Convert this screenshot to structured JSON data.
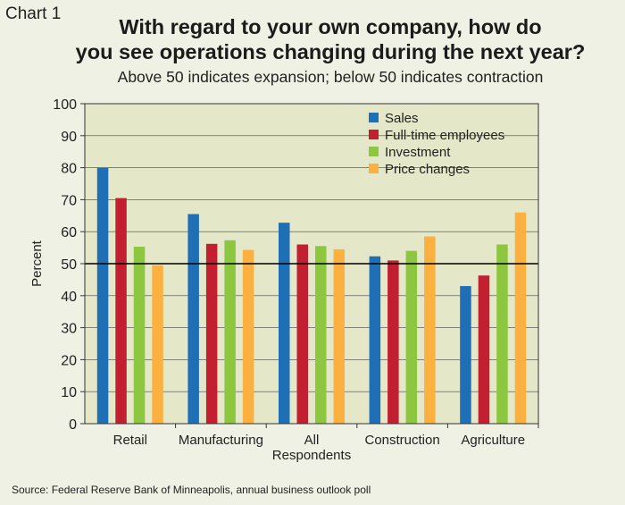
{
  "chart_label": "Chart 1",
  "title_line1": "With regard to your own company, how do",
  "title_line2": "you see operations changing during the next year?",
  "subtitle": "Above 50 indicates expansion; below 50 indicates contraction",
  "footer": "Source: Federal Reserve Bank of Minneapolis, annual business outlook poll",
  "colors": {
    "plot_bg": "#e4e8c8",
    "page_bg": "#eef1e3",
    "grid": "#444444",
    "ref_line": "#000000"
  },
  "chart_data": {
    "type": "bar",
    "ylabel": "Percent",
    "xlabel": "",
    "ylim": [
      0,
      100
    ],
    "yticks": [
      0,
      10,
      20,
      30,
      40,
      50,
      60,
      70,
      80,
      90,
      100
    ],
    "grid": true,
    "reference_line": 50,
    "legend_position": "top-right",
    "categories": [
      "Retail",
      "Manufacturing",
      "All Respondents",
      "Construction",
      "Agriculture"
    ],
    "category_label_lines": [
      [
        "Retail"
      ],
      [
        "Manufacturing"
      ],
      [
        "All",
        "Respondents"
      ],
      [
        "Construction"
      ],
      [
        "Agriculture"
      ]
    ],
    "series": [
      {
        "name": "Sales",
        "color": "#1f6fb7",
        "values": [
          80,
          65.5,
          62.8,
          52.3,
          43
        ]
      },
      {
        "name": "Full-time employees",
        "color": "#c21f30",
        "values": [
          70.5,
          56.2,
          56,
          51,
          46.3
        ]
      },
      {
        "name": "Investment",
        "color": "#8dc63f",
        "values": [
          55.3,
          57.3,
          55.5,
          54,
          56
        ]
      },
      {
        "name": "Price changes",
        "color": "#fbb040",
        "values": [
          49.5,
          54.3,
          54.5,
          58.5,
          66
        ]
      }
    ]
  }
}
